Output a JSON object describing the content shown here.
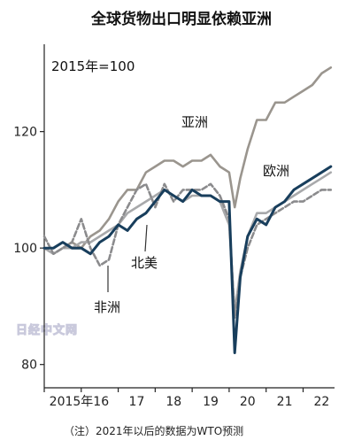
{
  "chart_data": {
    "type": "line",
    "title": "全球货物出口明显依赖亚洲",
    "subtitle": "2015年=100",
    "note": "（注）2021年以后的数据为WTO预测",
    "watermark": "日经中文网",
    "x_ticks": [
      "2015年16",
      "17",
      "18",
      "19",
      "20",
      "21",
      "22"
    ],
    "x_tick_positions": [
      2016,
      2017,
      2018,
      2019,
      2020,
      2021,
      2022
    ],
    "xlim": [
      2015,
      2022.85
    ],
    "y_ticks": [
      80,
      100,
      120
    ],
    "ylim": [
      76,
      135
    ],
    "grid": false,
    "colors": {
      "asia": "#9a958e",
      "europe": "#a8a9ab",
      "north_america": "#183e5c",
      "africa": "#8b8b8d"
    },
    "series": [
      {
        "key": "asia",
        "name": "亚洲",
        "style": "solid",
        "points": [
          [
            2015.0,
            100
          ],
          [
            2015.25,
            99
          ],
          [
            2015.5,
            100
          ],
          [
            2015.75,
            101
          ],
          [
            2016.0,
            100
          ],
          [
            2016.25,
            102
          ],
          [
            2016.5,
            103
          ],
          [
            2016.75,
            105
          ],
          [
            2017.0,
            108
          ],
          [
            2017.25,
            110
          ],
          [
            2017.5,
            110
          ],
          [
            2017.75,
            113
          ],
          [
            2018.0,
            114
          ],
          [
            2018.25,
            115
          ],
          [
            2018.5,
            115
          ],
          [
            2018.75,
            114
          ],
          [
            2019.0,
            115
          ],
          [
            2019.25,
            115
          ],
          [
            2019.5,
            116
          ],
          [
            2019.75,
            114
          ],
          [
            2020.0,
            113
          ],
          [
            2020.15,
            107
          ],
          [
            2020.3,
            112
          ],
          [
            2020.5,
            117
          ],
          [
            2020.75,
            122
          ],
          [
            2021.0,
            122
          ],
          [
            2021.25,
            125
          ],
          [
            2021.5,
            125
          ],
          [
            2021.75,
            126
          ],
          [
            2022.0,
            127
          ],
          [
            2022.25,
            128
          ],
          [
            2022.5,
            130
          ],
          [
            2022.75,
            131
          ]
        ]
      },
      {
        "key": "europe",
        "name": "欧洲",
        "style": "solid",
        "points": [
          [
            2015.0,
            100
          ],
          [
            2015.25,
            99
          ],
          [
            2015.5,
            100
          ],
          [
            2015.75,
            100
          ],
          [
            2016.0,
            101
          ],
          [
            2016.25,
            101
          ],
          [
            2016.5,
            102
          ],
          [
            2016.75,
            103
          ],
          [
            2017.0,
            104
          ],
          [
            2017.25,
            106
          ],
          [
            2017.5,
            107
          ],
          [
            2017.75,
            108
          ],
          [
            2018.0,
            109
          ],
          [
            2018.25,
            110
          ],
          [
            2018.5,
            109
          ],
          [
            2018.75,
            108
          ],
          [
            2019.0,
            109
          ],
          [
            2019.25,
            109
          ],
          [
            2019.5,
            109
          ],
          [
            2019.75,
            108
          ],
          [
            2020.0,
            104
          ],
          [
            2020.15,
            89
          ],
          [
            2020.3,
            96
          ],
          [
            2020.5,
            102
          ],
          [
            2020.75,
            106
          ],
          [
            2021.0,
            106
          ],
          [
            2021.25,
            107
          ],
          [
            2021.5,
            108
          ],
          [
            2021.75,
            109
          ],
          [
            2022.0,
            110
          ],
          [
            2022.25,
            111
          ],
          [
            2022.5,
            112
          ],
          [
            2022.75,
            113
          ]
        ]
      },
      {
        "key": "north_america",
        "name": "北美",
        "style": "solid",
        "points": [
          [
            2015.0,
            100
          ],
          [
            2015.25,
            100
          ],
          [
            2015.5,
            101
          ],
          [
            2015.75,
            100
          ],
          [
            2016.0,
            100
          ],
          [
            2016.25,
            99
          ],
          [
            2016.5,
            101
          ],
          [
            2016.75,
            102
          ],
          [
            2017.0,
            104
          ],
          [
            2017.25,
            103
          ],
          [
            2017.5,
            105
          ],
          [
            2017.75,
            106
          ],
          [
            2018.0,
            108
          ],
          [
            2018.25,
            110
          ],
          [
            2018.5,
            109
          ],
          [
            2018.75,
            108
          ],
          [
            2019.0,
            110
          ],
          [
            2019.25,
            109
          ],
          [
            2019.5,
            109
          ],
          [
            2019.75,
            108
          ],
          [
            2020.0,
            108
          ],
          [
            2020.15,
            82
          ],
          [
            2020.3,
            95
          ],
          [
            2020.5,
            102
          ],
          [
            2020.75,
            105
          ],
          [
            2021.0,
            104
          ],
          [
            2021.25,
            107
          ],
          [
            2021.5,
            108
          ],
          [
            2021.75,
            110
          ],
          [
            2022.0,
            111
          ],
          [
            2022.25,
            112
          ],
          [
            2022.5,
            113
          ],
          [
            2022.75,
            114
          ]
        ]
      },
      {
        "key": "africa",
        "name": "非洲",
        "style": "dashed",
        "points": [
          [
            2015.0,
            102
          ],
          [
            2015.25,
            99
          ],
          [
            2015.5,
            100
          ],
          [
            2015.75,
            101
          ],
          [
            2016.0,
            105
          ],
          [
            2016.25,
            100
          ],
          [
            2016.5,
            97
          ],
          [
            2016.75,
            98
          ],
          [
            2017.0,
            104
          ],
          [
            2017.25,
            107
          ],
          [
            2017.5,
            110
          ],
          [
            2017.75,
            111
          ],
          [
            2018.0,
            107
          ],
          [
            2018.25,
            111
          ],
          [
            2018.5,
            108
          ],
          [
            2018.75,
            110
          ],
          [
            2019.0,
            110
          ],
          [
            2019.25,
            110
          ],
          [
            2019.5,
            111
          ],
          [
            2019.75,
            109
          ],
          [
            2020.0,
            105
          ],
          [
            2020.15,
            88
          ],
          [
            2020.3,
            95
          ],
          [
            2020.5,
            100
          ],
          [
            2020.75,
            104
          ],
          [
            2021.0,
            105
          ],
          [
            2021.25,
            106
          ],
          [
            2021.5,
            107
          ],
          [
            2021.75,
            108
          ],
          [
            2022.0,
            108
          ],
          [
            2022.25,
            109
          ],
          [
            2022.5,
            110
          ],
          [
            2022.75,
            110
          ]
        ]
      }
    ]
  }
}
